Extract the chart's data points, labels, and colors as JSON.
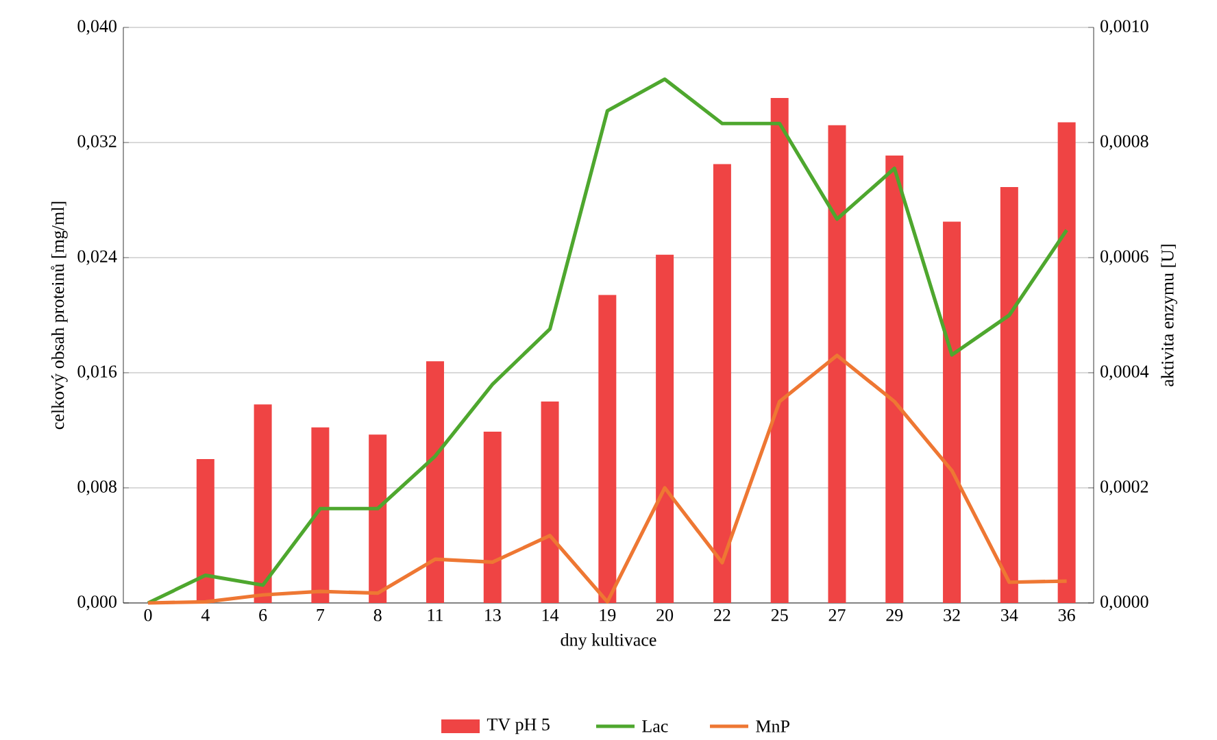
{
  "chart_data": {
    "type": "bar",
    "categories": [
      "0",
      "4",
      "6",
      "7",
      "8",
      "11",
      "13",
      "14",
      "19",
      "20",
      "22",
      "25",
      "27",
      "29",
      "32",
      "34",
      "36"
    ],
    "xlabel": "dny kultivace",
    "ylabel": "celkový obsah proteinů [mg/ml]",
    "y2label": "aktivita enzymu [U]",
    "ylim": [
      0,
      0.04
    ],
    "yticks": [
      {
        "value": 0,
        "label": "0,000"
      },
      {
        "value": 0.008,
        "label": "0,008"
      },
      {
        "value": 0.016,
        "label": "0,016"
      },
      {
        "value": 0.024,
        "label": "0,024"
      },
      {
        "value": 0.032,
        "label": "0,032"
      },
      {
        "value": 0.04,
        "label": "0,040"
      }
    ],
    "y2lim": [
      0,
      0.001
    ],
    "y2ticks": [
      {
        "value": 0,
        "label": "0,0000"
      },
      {
        "value": 0.0002,
        "label": "0,0002"
      },
      {
        "value": 0.0004,
        "label": "0,0004"
      },
      {
        "value": 0.0006,
        "label": "0,0006"
      },
      {
        "value": 0.0008,
        "label": "0,0008"
      },
      {
        "value": 0.001,
        "label": "0,0010"
      }
    ],
    "grid": "y",
    "legend": "bottom",
    "series": [
      {
        "name": "TV pH 5",
        "color": "#ef4444",
        "values": [
          0,
          0.01,
          0.0138,
          0.0122,
          0.0117,
          0.0168,
          0.0119,
          0.014,
          0.0214,
          0.0242,
          0.0305,
          0.0351,
          0.0332,
          0.0311,
          0.0265,
          0.0289,
          0.0334
        ]
      },
      {
        "name": "Lac",
        "type": "line",
        "axis": "y2",
        "color": "#4ea72e",
        "values": [
          0,
          4.8e-05,
          3.1e-05,
          0.000164,
          0.000164,
          0.000255,
          0.00038,
          0.000476,
          0.000855,
          0.00091,
          0.000833,
          0.000833,
          0.000667,
          0.000755,
          0.000431,
          0.0005,
          0.000648
        ]
      },
      {
        "name": "MnP",
        "type": "line",
        "axis": "y2",
        "color": "#ee7733",
        "values": [
          0,
          2e-06,
          1.4e-05,
          2e-05,
          1.7e-05,
          7.6e-05,
          7.1e-05,
          0.000117,
          2e-06,
          0.0002,
          7e-05,
          0.00035,
          0.00043,
          0.00035,
          0.00023,
          3.6e-05,
          3.8e-05
        ]
      }
    ]
  }
}
